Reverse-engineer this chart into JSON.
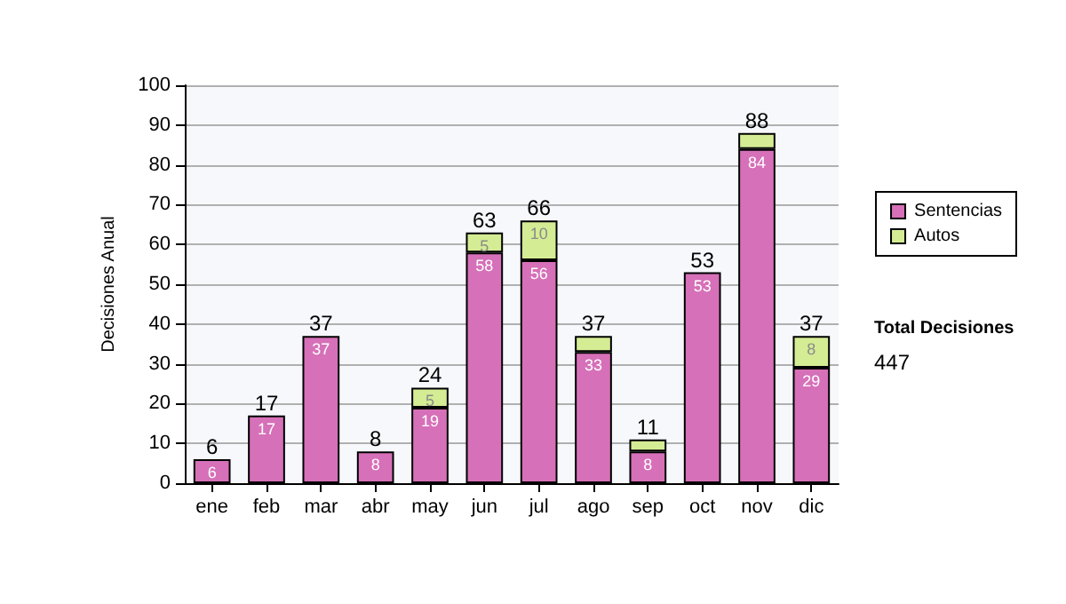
{
  "chart_data": {
    "type": "bar",
    "stacked": true,
    "ylabel": "Decisiones Anual",
    "categories": [
      "ene",
      "feb",
      "mar",
      "abr",
      "may",
      "jun",
      "jul",
      "ago",
      "sep",
      "oct",
      "nov",
      "dic"
    ],
    "series": [
      {
        "name": "Sentencias",
        "color": "#d670b8",
        "values": [
          6,
          17,
          37,
          8,
          19,
          58,
          56,
          33,
          8,
          53,
          84,
          29
        ],
        "value_labels": [
          "6",
          "17",
          "37",
          "8",
          "19",
          "58",
          "56",
          "33",
          "8",
          "53",
          "84",
          "29"
        ]
      },
      {
        "name": "Autos",
        "color": "#d4ec94",
        "values": [
          0,
          0,
          0,
          0,
          5,
          5,
          10,
          4,
          3,
          0,
          4,
          8
        ],
        "value_labels": [
          null,
          null,
          null,
          null,
          "5",
          "5",
          "10",
          null,
          null,
          null,
          null,
          "8"
        ]
      }
    ],
    "totals": [
      "6",
      "17",
      "37",
      "8",
      "24",
      "63",
      "66",
      "37",
      "11",
      "53",
      "88",
      "37"
    ],
    "ylim": [
      0,
      100
    ],
    "yticks": [
      0,
      10,
      20,
      30,
      40,
      50,
      60,
      70,
      80,
      90,
      100
    ],
    "grid": "y",
    "legend": "right",
    "annotations": [
      "Total Decisiones",
      "447"
    ]
  }
}
